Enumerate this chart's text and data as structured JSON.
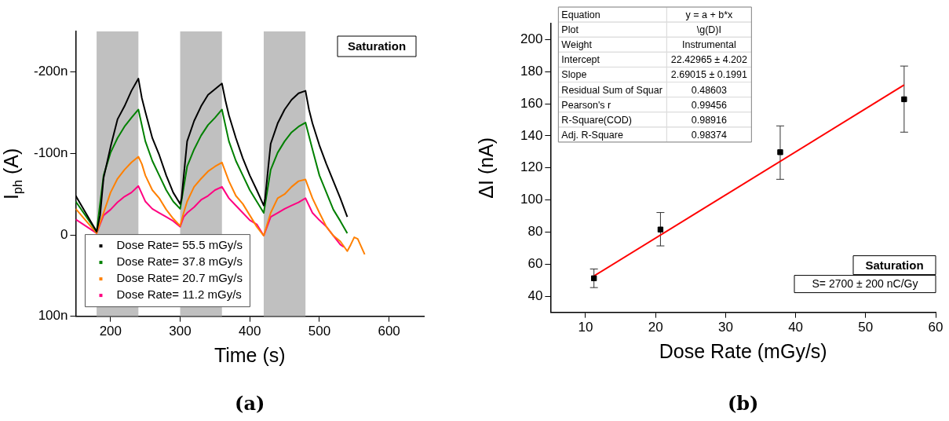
{
  "chart_data": [
    {
      "type": "line",
      "title": "(a)",
      "xlabel": "Time (s)",
      "ylabel": "I$_{ph}$ (A)",
      "xlim": [
        150,
        650
      ],
      "xticks": [
        200,
        300,
        400,
        500,
        600
      ],
      "ylim": [
        100,
        -250
      ],
      "yticks": [
        {
          "value": -200,
          "label": "-200n"
        },
        {
          "value": -100,
          "label": "-100n"
        },
        0,
        {
          "value": 100,
          "label": "100n"
        }
      ],
      "grid": false,
      "legend": "bottom left",
      "marker": "none",
      "line_style": "solid",
      "bands": [
        {
          "axis": "x",
          "from": 180,
          "to": 240,
          "color": "#c0c0c0"
        },
        {
          "axis": "x",
          "from": 300,
          "to": 360,
          "color": "#c0c0c0"
        },
        {
          "axis": "x",
          "from": 420,
          "to": 480,
          "color": "#c0c0c0"
        }
      ],
      "annotations": [
        "Saturation"
      ],
      "series": [
        {
          "name": "Dose Rate= 55.5 mGy/s",
          "color": "#000000",
          "x": [
            150,
            180,
            185,
            190,
            200,
            210,
            220,
            230,
            240,
            245,
            250,
            260,
            270,
            280,
            290,
            300,
            302,
            310,
            320,
            330,
            340,
            350,
            360,
            365,
            370,
            380,
            390,
            400,
            410,
            420,
            422,
            430,
            440,
            450,
            460,
            470,
            480,
            485,
            490,
            500,
            510,
            520,
            530,
            540
          ],
          "values": [
            -48,
            -4,
            -24,
            -70,
            -108,
            -142,
            -158,
            -177,
            -192,
            -168,
            -151,
            -119,
            -98,
            -73,
            -52,
            -38,
            -45,
            -115,
            -140,
            -158,
            -172,
            -179,
            -186,
            -165,
            -147,
            -119,
            -94,
            -73,
            -55,
            -36,
            -45,
            -112,
            -137,
            -154,
            -166,
            -174,
            -177,
            -154,
            -137,
            -110,
            -87,
            -66,
            -45,
            -22
          ]
        },
        {
          "name": "Dose Rate= 37.8 mGy/s",
          "color": "#008000",
          "x": [
            150,
            180,
            190,
            200,
            210,
            220,
            230,
            240,
            250,
            260,
            270,
            280,
            290,
            300,
            310,
            320,
            330,
            340,
            350,
            360,
            370,
            380,
            390,
            400,
            410,
            420,
            430,
            440,
            450,
            460,
            470,
            480,
            490,
            500,
            510,
            520,
            530,
            540
          ],
          "values": [
            -41,
            -4,
            -73,
            -101,
            -119,
            -133,
            -144,
            -154,
            -115,
            -91,
            -73,
            -55,
            -41,
            -32,
            -84,
            -105,
            -122,
            -135,
            -144,
            -154,
            -115,
            -91,
            -73,
            -55,
            -41,
            -27,
            -80,
            -101,
            -115,
            -126,
            -133,
            -138,
            -105,
            -73,
            -52,
            -31,
            -17,
            -2
          ]
        },
        {
          "name": "Dose Rate= 20.7 mGy/s",
          "color": "#ff8000",
          "x": [
            150,
            180,
            190,
            200,
            210,
            220,
            230,
            240,
            245,
            250,
            260,
            270,
            280,
            290,
            300,
            305,
            310,
            320,
            330,
            340,
            350,
            360,
            370,
            380,
            390,
            400,
            410,
            420,
            430,
            440,
            450,
            460,
            470,
            480,
            490,
            500,
            510,
            520,
            530,
            540,
            545,
            550,
            555,
            565
          ],
          "values": [
            -32,
            -2,
            -27,
            -52,
            -69,
            -80,
            -89,
            -96,
            -87,
            -73,
            -55,
            -45,
            -31,
            -20,
            -11,
            -27,
            -41,
            -59,
            -69,
            -78,
            -84,
            -89,
            -66,
            -48,
            -38,
            -24,
            -10,
            1,
            -27,
            -45,
            -50,
            -59,
            -66,
            -68,
            -45,
            -27,
            -10,
            1,
            8,
            20,
            12,
            3,
            5,
            24
          ]
        },
        {
          "name": "Dose Rate= 11.2 mGy/s",
          "color": "#ff0080",
          "x": [
            150,
            180,
            190,
            200,
            210,
            220,
            230,
            240,
            250,
            260,
            270,
            280,
            290,
            300,
            305,
            310,
            320,
            330,
            340,
            350,
            360,
            370,
            380,
            390,
            400,
            410,
            420,
            430,
            440,
            450,
            460,
            470,
            480,
            490,
            500,
            510,
            520,
            530,
            535
          ],
          "values": [
            -19,
            -2,
            -24,
            -31,
            -40,
            -47,
            -52,
            -60,
            -41,
            -32,
            -27,
            -22,
            -17,
            -10,
            -22,
            -27,
            -34,
            -43,
            -48,
            -55,
            -59,
            -45,
            -36,
            -27,
            -18,
            -13,
            1,
            -22,
            -27,
            -32,
            -36,
            -40,
            -45,
            -27,
            -18,
            -10,
            1,
            12,
            15
          ]
        }
      ]
    },
    {
      "type": "scatter",
      "title": "(b)",
      "xlabel": "Dose Rate (mGy/s)",
      "ylabel": "ΔI (nA)",
      "xlim": [
        5,
        60
      ],
      "xticks": [
        10,
        20,
        30,
        40,
        50,
        60
      ],
      "ylim": [
        30,
        210
      ],
      "yticks": [
        40,
        60,
        80,
        100,
        120,
        140,
        160,
        180,
        200
      ],
      "grid": false,
      "legend": false,
      "marker": "square",
      "annotations": [
        "Equation",
        "y = a + b*x",
        "Plot",
        "\\g(D)I",
        "Weight",
        "Instrumental",
        "Intercept",
        "22.42965 ± 4.202",
        "Slope",
        "2.69015 ± 0.1991",
        "Residual Sum of Squar",
        "0.48603",
        "Pearson's r",
        "0.99456",
        "R-Square(COD)",
        "0.98916",
        "Adj. R-Square",
        "0.98374",
        "Saturation",
        "S= 2700 ± 200 nC/Gy"
      ],
      "series": [
        {
          "color": "#000000",
          "x": [
            11.2,
            20.7,
            37.8,
            55.5
          ],
          "values": [
            51.2,
            81.6,
            129.8,
            162.8
          ],
          "errors": [
            [
              45.4,
              57
            ],
            [
              71.4,
              92.2
            ],
            [
              112.9,
              146.2
            ],
            [
              142.3,
              183.5
            ]
          ]
        },
        {
          "type": "line",
          "marker": "none",
          "color": "#ff0000",
          "x": [
            11.2,
            55.5
          ],
          "values": [
            52.6,
            171.7
          ]
        }
      ]
    }
  ]
}
